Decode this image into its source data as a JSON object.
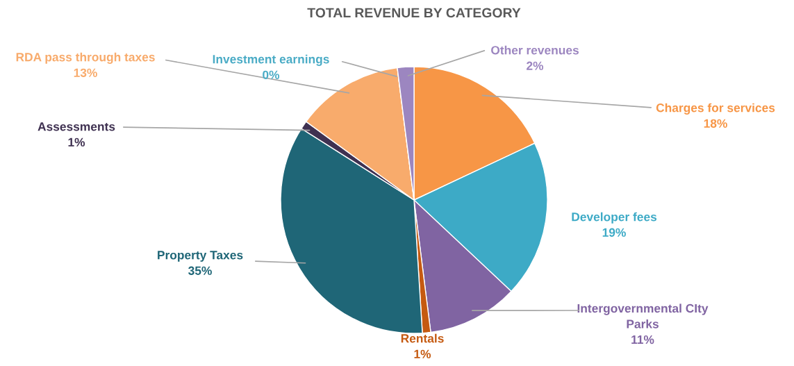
{
  "chart_data": {
    "type": "pie",
    "title": "TOTAL REVENUE BY CATEGORY",
    "categories": [
      "Charges for services",
      "Developer fees",
      "Intergovernmental CIty Parks",
      "Rentals",
      "Property Taxes",
      "Assessments",
      "RDA pass through taxes",
      "Investment earnings",
      "Other revenues"
    ],
    "values": [
      18,
      19,
      11,
      1,
      35,
      1,
      13,
      0,
      2
    ],
    "value_labels": [
      "18%",
      "19%",
      "11%",
      "1%",
      "35%",
      "1%",
      "13%",
      "0%",
      "2%"
    ],
    "colors": [
      "#f79646",
      "#3daac6",
      "#8064a2",
      "#c55a11",
      "#1f6677",
      "#3f3151",
      "#f8ab6c",
      "#4bacc6",
      "#9c86c0"
    ],
    "legend": false
  }
}
